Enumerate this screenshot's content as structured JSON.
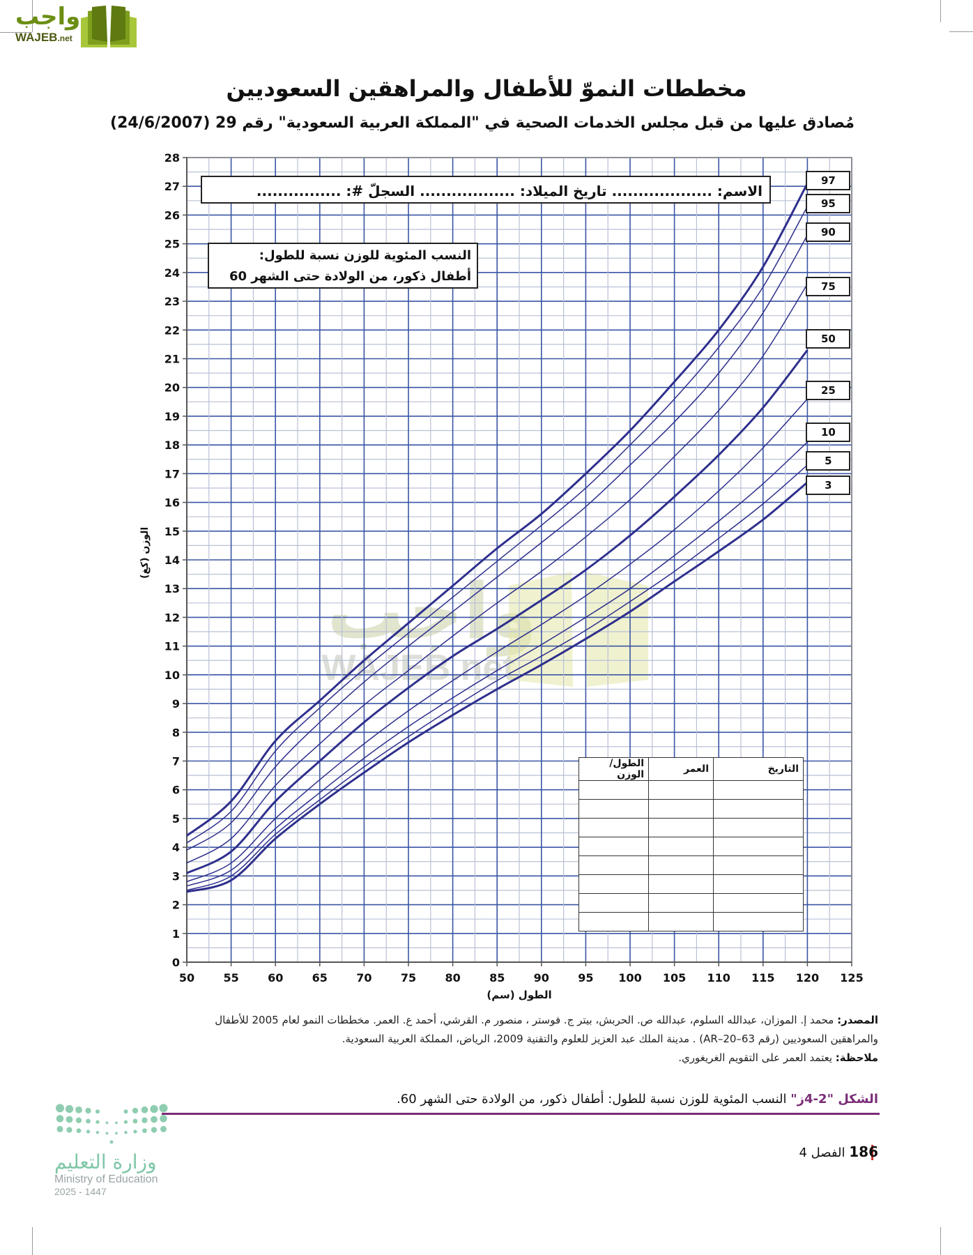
{
  "header": {
    "logo_text_ar": "واجب",
    "logo_text_en": "WAJEB",
    "logo_text_tld": ".net",
    "title": "مخططات النموّ للأطفال والمراهقين السعوديين",
    "subtitle": "مُصادق عليها من قبل مجلس الخدمات الصحية في \"المملكة العربية السعودية\" رقم 29 (24/6/2007)"
  },
  "chart": {
    "name_box": "الاسم: ................... تاريخ الميلاد: .................. السجلّ #: ................",
    "legend_line1": "النسب المئوية للوزن نسبة للطول:",
    "legend_line2": "أطفال ذكور، من الولادة حتى الشهر 60",
    "ylabel": "الوزن (كغ)",
    "xlabel": "الطول (سم)",
    "watermark_ar": "واجب",
    "watermark_en": "WAJEB.net",
    "record_table": {
      "headers": [
        "التاريخ",
        "العمر",
        "الطول/الوزن"
      ],
      "empty_rows": 8
    },
    "colors": {
      "major_grid": "#3a55a4",
      "minor_grid": "#b9c0d6",
      "curve": "#2e2f8c",
      "axis": "#555555"
    }
  },
  "chart_data": {
    "type": "line",
    "title": "النسب المئوية للوزن نسبة للطول: أطفال ذكور، من الولادة حتى الشهر 60",
    "xlabel": "الطول (سم)",
    "ylabel": "الوزن (كغ)",
    "xlim": [
      50,
      125
    ],
    "ylim": [
      0,
      28
    ],
    "grid": true,
    "x_ticks": [
      50,
      55,
      60,
      65,
      70,
      75,
      80,
      85,
      90,
      95,
      100,
      105,
      110,
      115,
      120,
      125
    ],
    "y_ticks": [
      0,
      1,
      2,
      3,
      4,
      5,
      6,
      7,
      8,
      9,
      10,
      11,
      12,
      13,
      14,
      15,
      16,
      17,
      18,
      19,
      20,
      21,
      22,
      23,
      24,
      25,
      26,
      27,
      28
    ],
    "x": [
      50,
      55,
      60,
      65,
      70,
      75,
      80,
      85,
      90,
      95,
      100,
      105,
      110,
      115,
      120
    ],
    "legend_position": "right (boxed labels at curve ends)",
    "series": [
      {
        "name": "97",
        "bold": true,
        "values": [
          4.4,
          5.6,
          7.7,
          9.1,
          10.5,
          11.8,
          13.1,
          14.4,
          15.6,
          17.0,
          18.5,
          20.2,
          22.0,
          24.2,
          27.1
        ]
      },
      {
        "name": "95",
        "bold": false,
        "values": [
          4.15,
          5.25,
          7.35,
          8.85,
          10.2,
          11.45,
          12.7,
          13.95,
          15.2,
          16.5,
          18.0,
          19.6,
          21.4,
          23.5,
          26.3
        ]
      },
      {
        "name": "90",
        "bold": false,
        "values": [
          3.9,
          4.85,
          6.8,
          8.35,
          9.75,
          11.0,
          12.2,
          13.4,
          14.6,
          15.85,
          17.3,
          18.8,
          20.5,
          22.6,
          25.3
        ]
      },
      {
        "name": "75",
        "bold": false,
        "values": [
          3.45,
          4.3,
          6.15,
          7.6,
          8.95,
          10.15,
          11.35,
          12.5,
          13.6,
          14.8,
          16.1,
          17.6,
          19.2,
          21.1,
          23.6
        ]
      },
      {
        "name": "50",
        "bold": true,
        "values": [
          3.1,
          3.85,
          5.6,
          7.0,
          8.35,
          9.55,
          10.65,
          11.6,
          12.6,
          13.65,
          14.85,
          16.2,
          17.65,
          19.3,
          21.3
        ]
      },
      {
        "name": "25",
        "bold": false,
        "values": [
          2.8,
          3.45,
          5.0,
          6.35,
          7.6,
          8.75,
          9.8,
          10.8,
          11.75,
          12.75,
          13.85,
          15.05,
          16.4,
          17.9,
          19.6
        ]
      },
      {
        "name": "10",
        "bold": false,
        "values": [
          2.65,
          3.2,
          4.65,
          5.9,
          7.1,
          8.2,
          9.2,
          10.15,
          11.05,
          12.0,
          13.0,
          14.15,
          15.35,
          16.65,
          18.1
        ]
      },
      {
        "name": "5",
        "bold": false,
        "values": [
          2.5,
          3.0,
          4.45,
          5.65,
          6.8,
          7.85,
          8.85,
          9.8,
          10.65,
          11.55,
          12.55,
          13.6,
          14.75,
          15.95,
          17.3
        ]
      },
      {
        "name": "3",
        "bold": true,
        "values": [
          2.45,
          2.85,
          4.3,
          5.5,
          6.6,
          7.65,
          8.6,
          9.5,
          10.35,
          11.25,
          12.2,
          13.25,
          14.3,
          15.4,
          16.7
        ]
      }
    ],
    "percentile_label_boxes": [
      {
        "label": "97",
        "y_kg": 27.2
      },
      {
        "label": "95",
        "y_kg": 26.4
      },
      {
        "label": "90",
        "y_kg": 25.4
      },
      {
        "label": "75",
        "y_kg": 23.5
      },
      {
        "label": "50",
        "y_kg": 21.7
      },
      {
        "label": "25",
        "y_kg": 19.9
      },
      {
        "label": "10",
        "y_kg": 18.45
      },
      {
        "label": "5",
        "y_kg": 17.45
      },
      {
        "label": "3",
        "y_kg": 16.6
      }
    ]
  },
  "notes": {
    "source_label": "المصدر:",
    "source_text": " محمد إ. الموزان، عبدالله السلوم، عبدالله ص. الحربش، بيتر ج. فوستر ، منصور م. القرشي، أحمد ع. العمر. مخططات النمو لعام 2005 للأطفال والمراهقين السعوديين (رقم AR–20–63) . مدينة الملك عبد العزيز للعلوم والتقنية 2009، الرياض، المملكة العربية السعودية.",
    "note_label": "ملاحظة:",
    "note_text": " يعتمد العمر على التقويم الغريغوري."
  },
  "caption": {
    "figure_label": "الشكل \"2-4ز\"",
    "text": " النسب المئوية للوزن نسبة للطول: أطفال ذكور، من الولادة حتى الشهر 60."
  },
  "footer": {
    "page_number": "186",
    "chapter": "الفصل 4",
    "ministry_ar": "وزارة التعليم",
    "ministry_en": "Ministry of Education",
    "year": "2025 - 1447"
  }
}
